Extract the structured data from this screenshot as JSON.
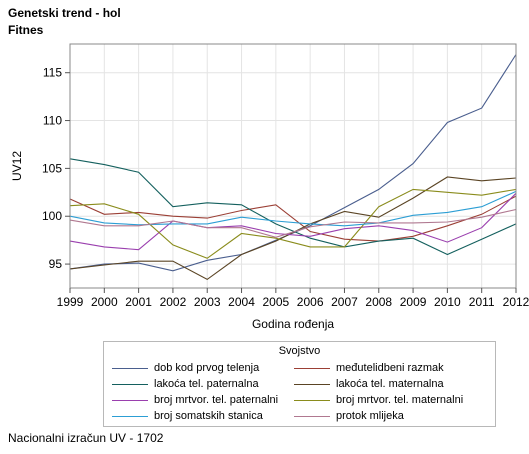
{
  "header": {
    "title_line1": "Genetski trend - hol",
    "title_line2": "Fitnes"
  },
  "footer": {
    "text": "Nacionalni izračun UV - 1702"
  },
  "chart_data": {
    "type": "line",
    "xlabel": "Godina rođenja",
    "ylabel": "UV12",
    "x": [
      1999,
      2000,
      2001,
      2002,
      2003,
      2004,
      2005,
      2006,
      2007,
      2008,
      2009,
      2010,
      2011,
      2012
    ],
    "xlim": [
      1999,
      2012
    ],
    "ylim": [
      92.5,
      118
    ],
    "yticks": [
      95,
      100,
      105,
      110,
      115
    ],
    "grid": true,
    "legend_title": "Svojstvo",
    "legend_position": "bottom",
    "series": [
      {
        "name": "dob kod prvog telenja",
        "color": "#4a5e8e",
        "values": [
          94.5,
          95.0,
          95.1,
          94.3,
          95.4,
          96.0,
          97.5,
          99.0,
          100.9,
          102.8,
          105.5,
          109.8,
          111.3,
          116.9
        ]
      },
      {
        "name": "međutelidbeni razmak",
        "color": "#9b3f35",
        "values": [
          101.8,
          100.2,
          100.4,
          100.0,
          99.8,
          100.6,
          101.2,
          98.4,
          97.6,
          97.4,
          97.9,
          99.0,
          100.2,
          102.1
        ]
      },
      {
        "name": "lakoća tel. paternalna",
        "color": "#14605e",
        "values": [
          106.0,
          105.4,
          104.6,
          101.0,
          101.4,
          101.2,
          99.2,
          97.7,
          96.8,
          97.4,
          97.7,
          96.0,
          97.6,
          99.2
        ]
      },
      {
        "name": "lakoća tel. maternalna",
        "color": "#5a4424",
        "values": [
          94.5,
          94.9,
          95.3,
          95.3,
          93.4,
          96.0,
          97.4,
          99.2,
          100.5,
          99.9,
          101.9,
          104.1,
          103.7,
          104.0
        ]
      },
      {
        "name": "broj mrtvor. tel. paternalni",
        "color": "#9a3fae",
        "values": [
          97.4,
          96.8,
          96.5,
          99.5,
          98.8,
          99.0,
          98.2,
          97.9,
          98.7,
          99.0,
          98.5,
          97.3,
          98.8,
          102.4
        ]
      },
      {
        "name": "broj mrtvor. tel. maternalni",
        "color": "#8a8c1c",
        "values": [
          101.1,
          101.3,
          100.2,
          97.0,
          95.6,
          98.2,
          97.7,
          96.8,
          96.8,
          101.0,
          102.8,
          102.5,
          102.2,
          102.8
        ]
      },
      {
        "name": "broj somatskih stanica",
        "color": "#2c9ed4",
        "values": [
          100.0,
          99.3,
          99.1,
          99.2,
          99.2,
          99.9,
          99.5,
          99.2,
          99.0,
          99.3,
          100.1,
          100.4,
          101.0,
          102.6
        ]
      },
      {
        "name": "protok mlijeka",
        "color": "#b07890",
        "values": [
          99.6,
          99.0,
          99.0,
          99.5,
          98.8,
          98.8,
          97.8,
          98.9,
          99.4,
          99.3,
          99.3,
          99.4,
          99.9,
          100.7
        ]
      }
    ]
  }
}
